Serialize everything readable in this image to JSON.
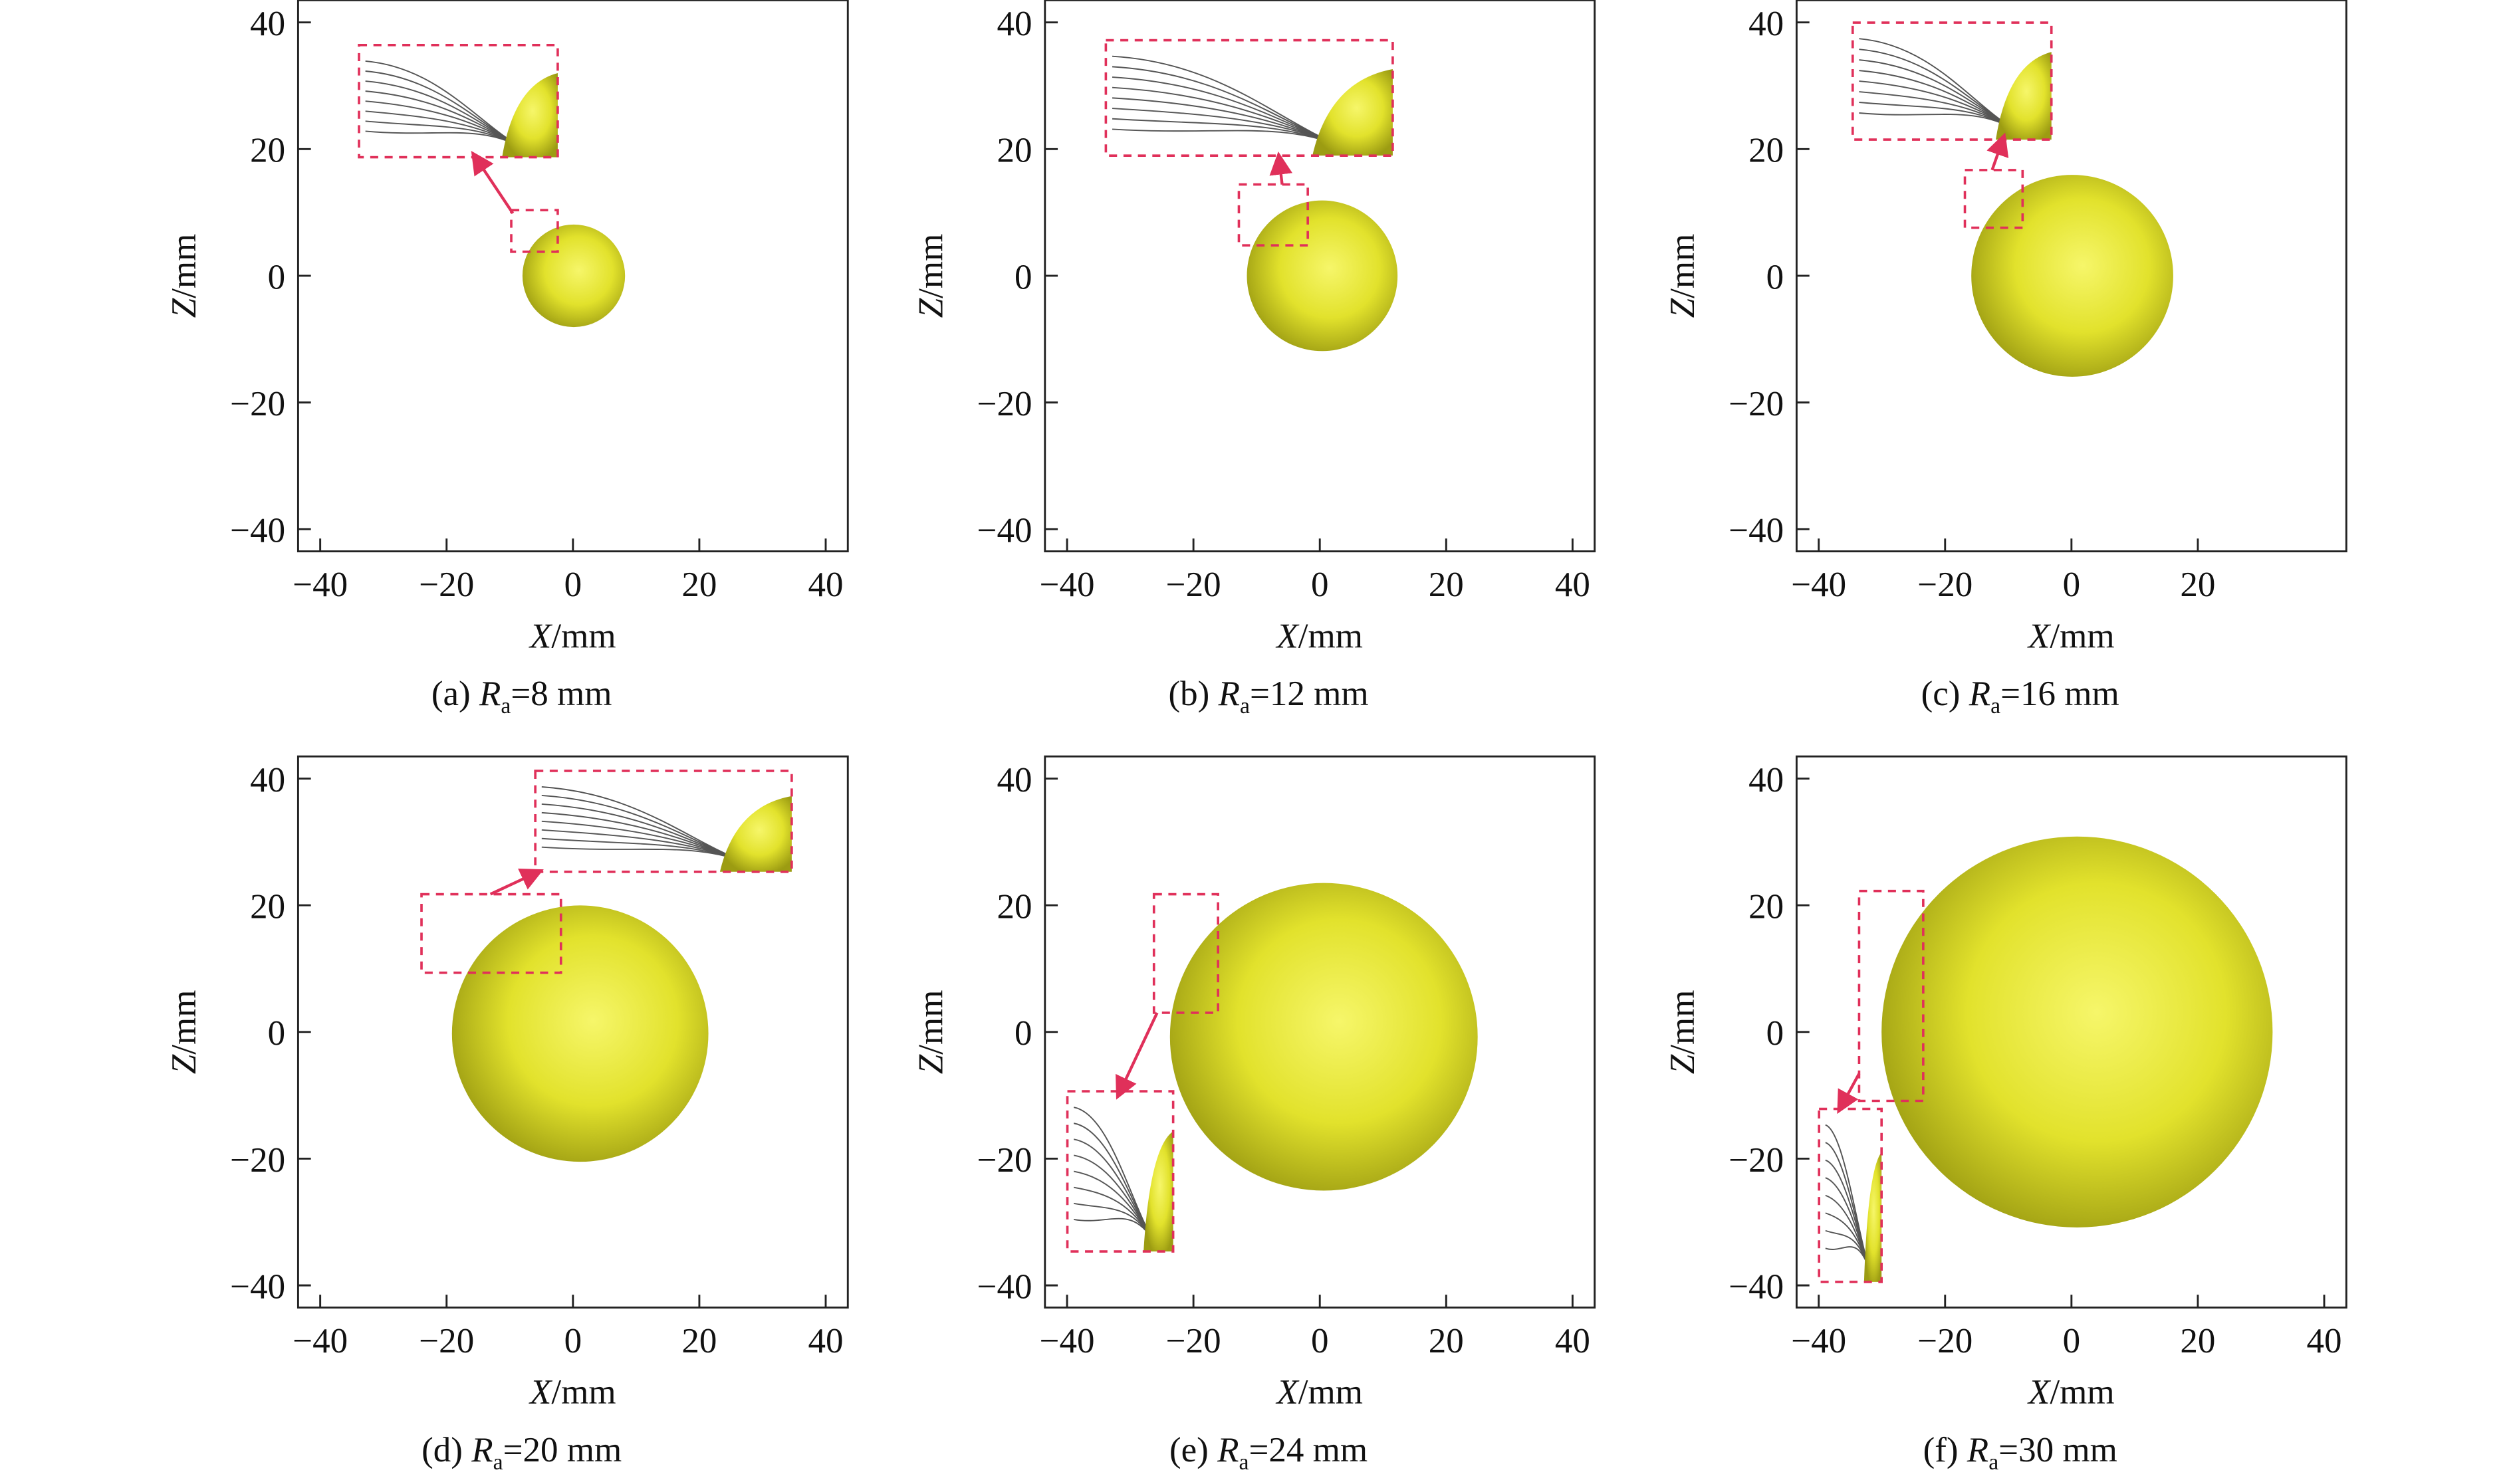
{
  "panels": [
    {
      "caption": {
        "label": "(a) ",
        "symbol": "R",
        "subscript": "a",
        "text": "=8 mm"
      },
      "x_label": {
        "symbol": "X",
        "unit": "/mm"
      },
      "z_label": {
        "symbol": "Z",
        "unit": "/mm"
      },
      "xlim": [
        -43.5,
        43.5
      ],
      "zlim": [
        -43.5,
        43.5
      ],
      "xticks": [
        {
          "value": -40,
          "label": "−40"
        },
        {
          "value": -20,
          "label": "−20"
        },
        0,
        20,
        40
      ],
      "zticks": [
        {
          "value": -40,
          "label": "−40"
        },
        {
          "value": -20,
          "label": "−20"
        },
        0,
        20,
        40
      ]
    },
    {
      "caption": {
        "label": "(b) ",
        "symbol": "R",
        "subscript": "a",
        "text": "=12 mm"
      },
      "x_label": {
        "symbol": "X",
        "unit": "/mm"
      },
      "z_label": {
        "symbol": "Z",
        "unit": "/mm"
      },
      "xlim": [
        -43.5,
        43.5
      ],
      "zlim": [
        -43.5,
        43.5
      ],
      "xticks": [
        {
          "value": -40,
          "label": "−40"
        },
        {
          "value": -20,
          "label": "−20"
        },
        0,
        20,
        40
      ],
      "zticks": [
        {
          "value": -40,
          "label": "−40"
        },
        {
          "value": -20,
          "label": "−20"
        },
        0,
        20,
        40
      ]
    },
    {
      "caption": {
        "label": "(c) ",
        "symbol": "R",
        "subscript": "a",
        "text": "=16 mm"
      },
      "x_label": {
        "symbol": "X",
        "unit": "/mm"
      },
      "z_label": {
        "symbol": "Z",
        "unit": "/mm"
      },
      "xlim": [
        -43.5,
        43.5
      ],
      "zlim": [
        -43.5,
        43.5
      ],
      "xticks": [
        {
          "value": -40,
          "label": "−40"
        },
        {
          "value": -20,
          "label": "−20"
        },
        0,
        20
      ],
      "zticks": [
        {
          "value": -40,
          "label": "−40"
        },
        {
          "value": -20,
          "label": "−20"
        },
        0,
        20,
        40
      ]
    },
    {
      "caption": {
        "label": "(d) ",
        "symbol": "R",
        "subscript": "a",
        "text": "=20 mm"
      },
      "x_label": {
        "symbol": "X",
        "unit": "/mm"
      },
      "z_label": {
        "symbol": "Z",
        "unit": "/mm"
      },
      "xlim": [
        -43.5,
        43.5
      ],
      "zlim": [
        -43.5,
        43.5
      ],
      "xticks": [
        {
          "value": -40,
          "label": "−40"
        },
        {
          "value": -20,
          "label": "−20"
        },
        0,
        20,
        40
      ],
      "zticks": [
        {
          "value": -40,
          "label": "−40"
        },
        {
          "value": -20,
          "label": "−20"
        },
        0,
        20,
        40
      ]
    },
    {
      "caption": {
        "label": "(e) ",
        "symbol": "R",
        "subscript": "a",
        "text": "=24 mm"
      },
      "x_label": {
        "symbol": "X",
        "unit": "/mm"
      },
      "z_label": {
        "symbol": "Z",
        "unit": "/mm"
      },
      "xlim": [
        -43.5,
        43.5
      ],
      "zlim": [
        -43.5,
        43.5
      ],
      "xticks": [
        {
          "value": -40,
          "label": "−40"
        },
        {
          "value": -20,
          "label": "−20"
        },
        0,
        20,
        40
      ],
      "zticks": [
        {
          "value": -40,
          "label": "−40"
        },
        {
          "value": -20,
          "label": "−20"
        },
        0,
        20,
        40
      ]
    },
    {
      "caption": {
        "label": "(f) ",
        "symbol": "R",
        "subscript": "a",
        "text": "=30 mm"
      },
      "x_label": {
        "symbol": "X",
        "unit": "/mm"
      },
      "z_label": {
        "symbol": "Z",
        "unit": "/mm"
      },
      "xlim": [
        -43.5,
        43.5
      ],
      "zlim": [
        -43.5,
        43.5
      ],
      "xticks": [
        {
          "value": -40,
          "label": "−40"
        },
        {
          "value": -20,
          "label": "−20"
        },
        0,
        20,
        40
      ],
      "zticks": [
        {
          "value": -40,
          "label": "−40"
        },
        {
          "value": -20,
          "label": "−20"
        },
        0,
        20,
        40
      ]
    }
  ]
}
